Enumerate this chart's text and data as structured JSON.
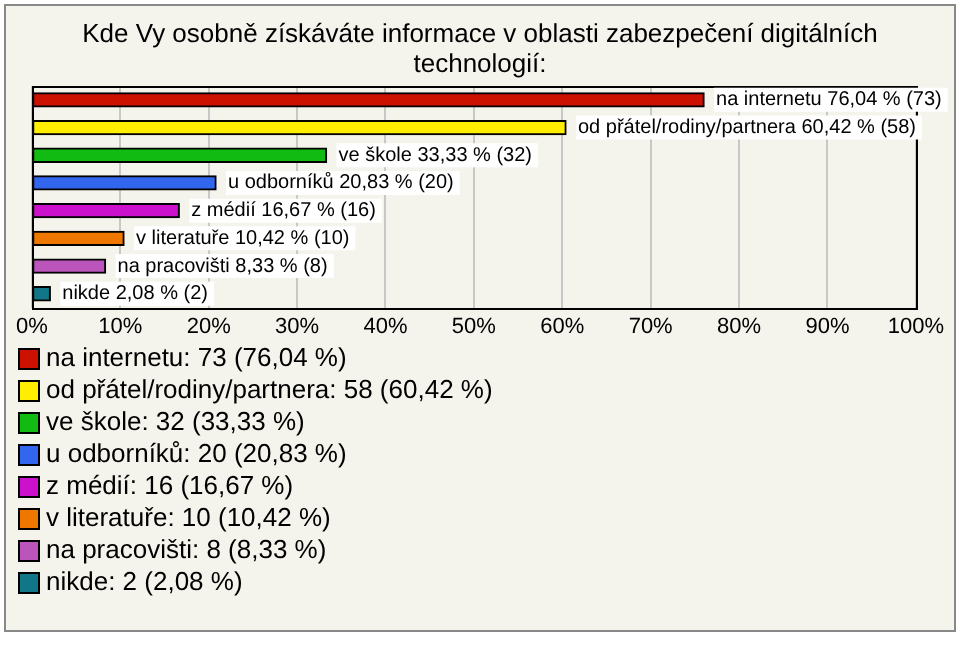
{
  "chart_data": {
    "type": "bar",
    "orientation": "horizontal",
    "stacked": true,
    "title": "Kde Vy osobně získáváte informace v oblasti zabezpečení digitálních technologií:",
    "categories": [
      null,
      null,
      null,
      null,
      null,
      null,
      null,
      null
    ],
    "series": [
      {
        "name": "na internetu: 73 (76,04 %)",
        "color": "#cc1100",
        "values": [
          76.04,
          null,
          null,
          null,
          null,
          null,
          null,
          null
        ],
        "value_labels": [
          "na internetu 76,04 % (73)",
          null,
          null,
          null,
          null,
          null,
          null,
          null
        ]
      },
      {
        "name": "od přátel/rodiny/partnera: 58 (60,42 %)",
        "color": "#ffee00",
        "values": [
          null,
          60.42,
          null,
          null,
          null,
          null,
          null,
          null
        ],
        "value_labels": [
          null,
          "od přátel/rodiny/partnera 60,42 % (58)",
          null,
          null,
          null,
          null,
          null,
          null
        ]
      },
      {
        "name": "ve škole: 32 (33,33 %)",
        "color": "#11bb11",
        "values": [
          null,
          null,
          33.33,
          null,
          null,
          null,
          null,
          null
        ],
        "value_labels": [
          null,
          null,
          "ve škole 33,33 % (32)",
          null,
          null,
          null,
          null,
          null
        ]
      },
      {
        "name": "u odborníků: 20 (20,83 %)",
        "color": "#3366ee",
        "values": [
          null,
          null,
          null,
          20.83,
          null,
          null,
          null,
          null
        ],
        "value_labels": [
          null,
          null,
          null,
          "u odborníků 20,83 % (20)",
          null,
          null,
          null,
          null
        ]
      },
      {
        "name": "z médií: 16 (16,67 %)",
        "color": "#cc11cc",
        "values": [
          null,
          null,
          null,
          null,
          16.67,
          null,
          null,
          null
        ],
        "value_labels": [
          null,
          null,
          null,
          null,
          "z médií 16,67 % (16)",
          null,
          null,
          null
        ]
      },
      {
        "name": "v literatuře: 10 (10,42 %)",
        "color": "#ee7700",
        "values": [
          null,
          null,
          null,
          null,
          null,
          10.42,
          null,
          null
        ],
        "value_labels": [
          null,
          null,
          null,
          null,
          null,
          "v literatuře 10,42 % (10)",
          null,
          null
        ]
      },
      {
        "name": "na pracovišti: 8 (8,33 %)",
        "color": "#bb55bb",
        "values": [
          null,
          null,
          null,
          null,
          null,
          null,
          8.33,
          null
        ],
        "value_labels": [
          null,
          null,
          null,
          null,
          null,
          null,
          "na pracovišti 8,33 % (8)",
          null
        ]
      },
      {
        "name": "nikde: 2 (2,08 %)",
        "color": "#117788",
        "values": [
          null,
          null,
          null,
          null,
          null,
          null,
          null,
          2.08
        ],
        "value_labels": [
          null,
          null,
          null,
          null,
          null,
          null,
          null,
          "nikde 2,08 % (2)"
        ]
      }
    ],
    "xlim": [
      0,
      100
    ],
    "xticks": [
      {
        "value": 0,
        "label": "0%"
      },
      {
        "value": 10,
        "label": "10%"
      },
      {
        "value": 20,
        "label": "20%"
      },
      {
        "value": 30,
        "label": "30%"
      },
      {
        "value": 40,
        "label": "40%"
      },
      {
        "value": 50,
        "label": "50%"
      },
      {
        "value": 60,
        "label": "60%"
      },
      {
        "value": 70,
        "label": "70%"
      },
      {
        "value": 80,
        "label": "80%"
      },
      {
        "value": 90,
        "label": "90%"
      },
      {
        "value": 100,
        "label": "100%"
      }
    ],
    "grid": "x",
    "legend": "bottom",
    "tick_labels": "x"
  }
}
